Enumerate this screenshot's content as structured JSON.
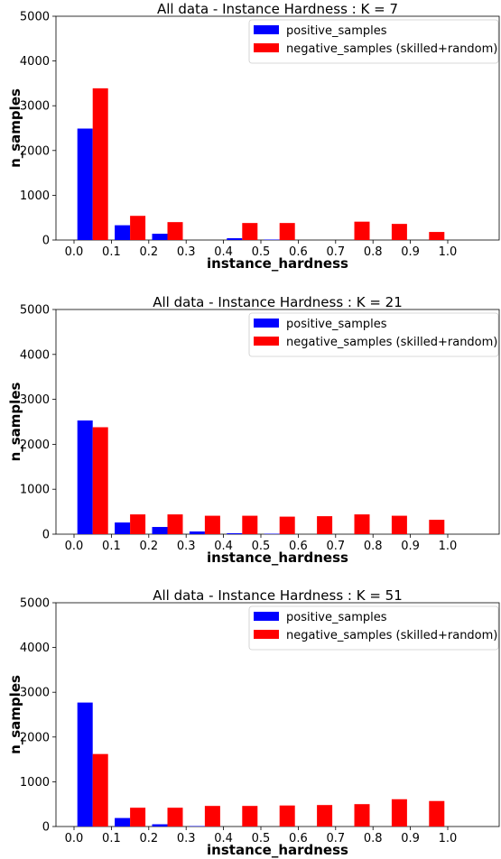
{
  "chart_data": [
    {
      "type": "bar",
      "title": "All data - Instance Hardness : K = 7",
      "xlabel": "instance_hardness",
      "ylabel": "n_samples",
      "ylim": [
        0,
        5000
      ],
      "yticks": [
        "0",
        "1000",
        "2000",
        "3000",
        "4000",
        "5000"
      ],
      "xticks": [
        "0.0",
        "0.1",
        "0.2",
        "0.3",
        "0.4",
        "0.5",
        "0.6",
        "0.7",
        "0.8",
        "0.9",
        "1.0"
      ],
      "legend_position": "top-right",
      "categories": [
        "0.0-0.1",
        "0.1-0.2",
        "0.2-0.3",
        "0.3-0.4",
        "0.4-0.5",
        "0.5-0.6",
        "0.6-0.7",
        "0.7-0.8",
        "0.8-0.9",
        "0.9-1.0"
      ],
      "series": [
        {
          "name": "positive_samples",
          "color": "#0000ff",
          "values": [
            2490,
            330,
            140,
            0,
            40,
            10,
            0,
            0,
            0,
            0
          ]
        },
        {
          "name": "negative_samples (skilled+random)",
          "color": "#ff0000",
          "values": [
            3390,
            540,
            400,
            0,
            380,
            380,
            0,
            410,
            360,
            180
          ]
        }
      ]
    },
    {
      "type": "bar",
      "title": "All data - Instance Hardness : K = 21",
      "xlabel": "instance_hardness",
      "ylabel": "n_samples",
      "ylim": [
        0,
        5000
      ],
      "yticks": [
        "0",
        "1000",
        "2000",
        "3000",
        "4000",
        "5000"
      ],
      "xticks": [
        "0.0",
        "0.1",
        "0.2",
        "0.3",
        "0.4",
        "0.5",
        "0.6",
        "0.7",
        "0.8",
        "0.9",
        "1.0"
      ],
      "legend_position": "top-right",
      "categories": [
        "0.0-0.1",
        "0.1-0.2",
        "0.2-0.3",
        "0.3-0.4",
        "0.4-0.5",
        "0.5-0.6",
        "0.6-0.7",
        "0.7-0.8",
        "0.8-0.9",
        "0.9-1.0"
      ],
      "series": [
        {
          "name": "positive_samples",
          "color": "#0000ff",
          "values": [
            2530,
            260,
            160,
            60,
            20,
            10,
            0,
            0,
            0,
            0
          ]
        },
        {
          "name": "negative_samples (skilled+random)",
          "color": "#ff0000",
          "values": [
            2380,
            440,
            440,
            410,
            410,
            390,
            400,
            440,
            410,
            320
          ]
        }
      ]
    },
    {
      "type": "bar",
      "title": "All data - Instance Hardness : K = 51",
      "xlabel": "instance_hardness",
      "ylabel": "n_samples",
      "ylim": [
        0,
        5000
      ],
      "yticks": [
        "0",
        "1000",
        "2000",
        "3000",
        "4000",
        "5000"
      ],
      "xticks": [
        "0.0",
        "0.1",
        "0.2",
        "0.3",
        "0.4",
        "0.5",
        "0.6",
        "0.7",
        "0.8",
        "0.9",
        "1.0"
      ],
      "legend_position": "top-right",
      "categories": [
        "0.0-0.1",
        "0.1-0.2",
        "0.2-0.3",
        "0.3-0.4",
        "0.4-0.5",
        "0.5-0.6",
        "0.6-0.7",
        "0.7-0.8",
        "0.8-0.9",
        "0.9-1.0"
      ],
      "series": [
        {
          "name": "positive_samples",
          "color": "#0000ff",
          "values": [
            2770,
            190,
            50,
            10,
            0,
            0,
            0,
            0,
            0,
            0
          ]
        },
        {
          "name": "negative_samples (skilled+random)",
          "color": "#ff0000",
          "values": [
            1620,
            420,
            420,
            460,
            460,
            470,
            480,
            500,
            610,
            570
          ]
        }
      ]
    }
  ]
}
